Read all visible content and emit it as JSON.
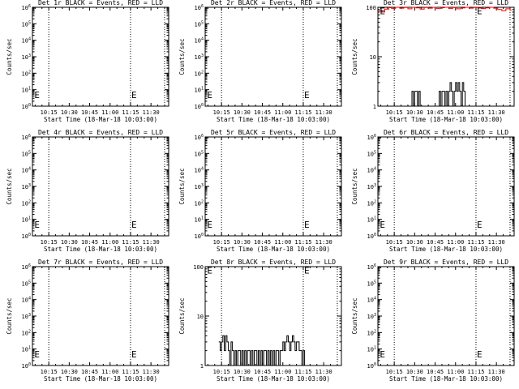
{
  "panel_colors": {
    "events": "#000000",
    "lld": "#ff0000"
  },
  "chart_data": [
    {
      "type": "line",
      "title": "Det 1r BLACK = Events, RED = LLD",
      "xlabel": "Start Time (18-Mar-18 10:03:00)",
      "ylabel": "Counts/sec",
      "x_tick_labels": [
        "10:15",
        "10:30",
        "10:45",
        "11:00",
        "11:15",
        "11:30"
      ],
      "x_ticks_min": [
        12,
        27,
        42,
        57,
        72,
        87
      ],
      "xlim": [
        0,
        100
      ],
      "yscale": "log",
      "ylim": [
        1,
        1000000
      ],
      "y_tick_labels": [
        "10^0",
        "10^1",
        "10^2",
        "10^3",
        "10^4",
        "10^5",
        "10^6"
      ],
      "y_tick_values": [
        1,
        10,
        100,
        1000,
        10000,
        100000,
        1000000
      ],
      "dotted_vlines_min": [
        12,
        72,
        97
      ],
      "markers": [
        {
          "label": "E",
          "x": 72,
          "y": 5
        },
        {
          "label": "E",
          "x": 0.8,
          "y": 5
        }
      ],
      "series": []
    },
    {
      "type": "line",
      "title": "Det 2r BLACK = Events, RED = LLD",
      "xlabel": "Start Time (18-Mar-18 10:03:00)",
      "ylabel": "Counts/sec",
      "x_tick_labels": [
        "10:15",
        "10:30",
        "10:45",
        "11:00",
        "11:15",
        "11:30"
      ],
      "x_ticks_min": [
        12,
        27,
        42,
        57,
        72,
        87
      ],
      "xlim": [
        0,
        100
      ],
      "yscale": "log",
      "ylim": [
        1,
        1000000
      ],
      "y_tick_labels": [
        "10^0",
        "10^1",
        "10^2",
        "10^3",
        "10^4",
        "10^5",
        "10^6"
      ],
      "y_tick_values": [
        1,
        10,
        100,
        1000,
        10000,
        100000,
        1000000
      ],
      "dotted_vlines_min": [
        12,
        72,
        97
      ],
      "markers": [
        {
          "label": "E",
          "x": 72,
          "y": 5
        },
        {
          "label": "E",
          "x": 0.8,
          "y": 5
        }
      ],
      "series": []
    },
    {
      "type": "line",
      "title": "Det 3r BLACK = Events, RED = LLD",
      "xlabel": "Start Time (18-Mar-18 10:03:00)",
      "ylabel": "Counts/sec",
      "x_tick_labels": [
        "10:15",
        "10:30",
        "10:45",
        "11:00",
        "11:15",
        "11:30"
      ],
      "x_ticks_min": [
        12,
        27,
        42,
        57,
        72,
        87
      ],
      "xlim": [
        0,
        100
      ],
      "yscale": "log",
      "ylim": [
        1,
        100
      ],
      "y_tick_labels": [
        "1",
        "10",
        "100"
      ],
      "y_tick_values": [
        1,
        10,
        100
      ],
      "dotted_vlines_min": [
        12,
        72,
        97
      ],
      "markers": [
        {
          "label": "E",
          "x": 72,
          "y": 85
        },
        {
          "label": "E",
          "x": 0.8,
          "y": 85
        }
      ],
      "series": [
        {
          "color": "lld",
          "x": [
            0,
            3,
            5,
            8,
            10,
            13,
            16,
            19,
            22,
            25,
            28,
            31,
            34,
            37,
            40,
            43,
            46,
            49,
            52,
            55,
            58,
            61,
            64,
            67,
            70,
            73,
            76,
            79,
            82,
            85,
            88,
            91,
            94,
            97
          ],
          "y": [
            85,
            80,
            92,
            98,
            95,
            100,
            96,
            99,
            93,
            100,
            97,
            92,
            99,
            96,
            100,
            94,
            98,
            100,
            95,
            99,
            93,
            97,
            100,
            96,
            99,
            100,
            94,
            97,
            100,
            96,
            90,
            85,
            93,
            88
          ]
        },
        {
          "color": "events",
          "x": [
            24,
            25,
            26,
            27,
            28,
            29,
            30,
            31,
            44,
            45,
            46,
            47,
            48,
            49,
            50,
            51,
            52,
            53,
            54,
            55,
            56,
            57,
            58,
            59,
            60,
            61,
            62,
            63,
            64,
            65
          ],
          "y": [
            1,
            2,
            1,
            2,
            2,
            1,
            2,
            1,
            1,
            2,
            1,
            2,
            2,
            1,
            2,
            1,
            2,
            3,
            2,
            1,
            2,
            3,
            2,
            3,
            2,
            1,
            3,
            2,
            1,
            1
          ]
        }
      ]
    },
    {
      "type": "line",
      "title": "Det 4r BLACK = Events, RED = LLD",
      "xlabel": "Start Time (18-Mar-18 10:03:00)",
      "ylabel": "Counts/sec",
      "x_tick_labels": [
        "10:15",
        "10:30",
        "10:45",
        "11:00",
        "11:15",
        "11:30"
      ],
      "x_ticks_min": [
        12,
        27,
        42,
        57,
        72,
        87
      ],
      "xlim": [
        0,
        100
      ],
      "yscale": "log",
      "ylim": [
        1,
        1000000
      ],
      "y_tick_labels": [
        "10^0",
        "10^1",
        "10^2",
        "10^3",
        "10^4",
        "10^5",
        "10^6"
      ],
      "y_tick_values": [
        1,
        10,
        100,
        1000,
        10000,
        100000,
        1000000
      ],
      "dotted_vlines_min": [
        12,
        72,
        97
      ],
      "markers": [
        {
          "label": "E",
          "x": 72,
          "y": 5
        },
        {
          "label": "E",
          "x": 0.8,
          "y": 5
        }
      ],
      "series": []
    },
    {
      "type": "line",
      "title": "Det 5r BLACK = Events, RED = LLD",
      "xlabel": "Start Time (18-Mar-18 10:03:00)",
      "ylabel": "Counts/sec",
      "x_tick_labels": [
        "10:15",
        "10:30",
        "10:45",
        "11:00",
        "11:15",
        "11:30"
      ],
      "x_ticks_min": [
        12,
        27,
        42,
        57,
        72,
        87
      ],
      "xlim": [
        0,
        100
      ],
      "yscale": "log",
      "ylim": [
        1,
        1000000
      ],
      "y_tick_labels": [
        "10^0",
        "10^1",
        "10^2",
        "10^3",
        "10^4",
        "10^5",
        "10^6"
      ],
      "y_tick_values": [
        1,
        10,
        100,
        1000,
        10000,
        100000,
        1000000
      ],
      "dotted_vlines_min": [
        12,
        72,
        97
      ],
      "markers": [
        {
          "label": "E",
          "x": 72,
          "y": 5
        },
        {
          "label": "E",
          "x": 0.8,
          "y": 5
        }
      ],
      "series": []
    },
    {
      "type": "line",
      "title": "Det 6r BLACK = Events, RED = LLD",
      "xlabel": "Start Time (18-Mar-18 10:03:00)",
      "ylabel": "Counts/sec",
      "x_tick_labels": [
        "10:15",
        "10:30",
        "10:45",
        "11:00",
        "11:15",
        "11:30"
      ],
      "x_ticks_min": [
        12,
        27,
        42,
        57,
        72,
        87
      ],
      "xlim": [
        0,
        100
      ],
      "yscale": "log",
      "ylim": [
        1,
        1000000
      ],
      "y_tick_labels": [
        "10^0",
        "10^1",
        "10^2",
        "10^3",
        "10^4",
        "10^5",
        "10^6"
      ],
      "y_tick_values": [
        1,
        10,
        100,
        1000,
        10000,
        100000,
        1000000
      ],
      "dotted_vlines_min": [
        12,
        72,
        97
      ],
      "markers": [
        {
          "label": "E",
          "x": 72,
          "y": 5
        },
        {
          "label": "E",
          "x": 0.8,
          "y": 5
        }
      ],
      "series": []
    },
    {
      "type": "line",
      "title": "Det 7r BLACK = Events, RED = LLD",
      "xlabel": "Start Time (18-Mar-18 10:03:00)",
      "ylabel": "Counts/sec",
      "x_tick_labels": [
        "10:15",
        "10:30",
        "10:45",
        "11:00",
        "11:15",
        "11:30"
      ],
      "x_ticks_min": [
        12,
        27,
        42,
        57,
        72,
        87
      ],
      "xlim": [
        0,
        100
      ],
      "yscale": "log",
      "ylim": [
        1,
        1000000
      ],
      "y_tick_labels": [
        "10^0",
        "10^1",
        "10^2",
        "10^3",
        "10^4",
        "10^5",
        "10^6"
      ],
      "y_tick_values": [
        1,
        10,
        100,
        1000,
        10000,
        100000,
        1000000
      ],
      "dotted_vlines_min": [
        12,
        72,
        97
      ],
      "markers": [
        {
          "label": "E",
          "x": 72,
          "y": 5
        },
        {
          "label": "E",
          "x": 0.8,
          "y": 5
        }
      ],
      "series": []
    },
    {
      "type": "line",
      "title": "Det 8r BLACK = Events, RED = LLD",
      "xlabel": "Start Time (18-Mar-18 10:03:00)",
      "ylabel": "Counts/sec",
      "x_tick_labels": [
        "10:15",
        "10:30",
        "10:45",
        "11:00",
        "11:15",
        "11:30"
      ],
      "x_ticks_min": [
        12,
        27,
        42,
        57,
        72,
        87
      ],
      "xlim": [
        0,
        100
      ],
      "yscale": "log",
      "ylim": [
        1,
        100
      ],
      "y_tick_labels": [
        "1",
        "10",
        "100"
      ],
      "y_tick_values": [
        1,
        10,
        100
      ],
      "dotted_vlines_min": [
        12,
        72,
        97
      ],
      "markers": [
        {
          "label": "E",
          "x": 72,
          "y": 85
        },
        {
          "label": "E",
          "x": 0.8,
          "y": 85
        }
      ],
      "series": [
        {
          "color": "events",
          "x": [
            10,
            11,
            12,
            13,
            14,
            15,
            16,
            17,
            18,
            19,
            20,
            21,
            22,
            23,
            24,
            25,
            26,
            27,
            28,
            29,
            30,
            31,
            32,
            33,
            34,
            35,
            36,
            37,
            38,
            39,
            40,
            41,
            42,
            43,
            44,
            45,
            46,
            47,
            48,
            49,
            50,
            51,
            52,
            53,
            54,
            55,
            56,
            57,
            58,
            59,
            60,
            61,
            62,
            63,
            64,
            65,
            66,
            67,
            68,
            69,
            70,
            71,
            72,
            73
          ],
          "y": [
            3,
            2,
            3,
            4,
            2,
            4,
            3,
            2,
            1,
            3,
            2,
            1,
            2,
            1,
            2,
            2,
            1,
            2,
            1,
            2,
            1,
            2,
            2,
            1,
            2,
            1,
            2,
            2,
            1,
            2,
            1,
            2,
            1,
            2,
            2,
            1,
            2,
            1,
            2,
            1,
            2,
            1,
            2,
            2,
            1,
            2,
            2,
            3,
            2,
            3,
            4,
            3,
            2,
            3,
            4,
            3,
            2,
            3,
            3,
            2,
            2,
            1,
            2,
            1
          ]
        }
      ]
    },
    {
      "type": "line",
      "title": "Det 9r BLACK = Events, RED = LLD",
      "xlabel": "Start Time (18-Mar-18 10:03:00)",
      "ylabel": "Counts/sec",
      "x_tick_labels": [
        "10:15",
        "10:30",
        "10:45",
        "11:00",
        "11:15",
        "11:30"
      ],
      "x_ticks_min": [
        12,
        27,
        42,
        57,
        72,
        87
      ],
      "xlim": [
        0,
        100
      ],
      "yscale": "log",
      "ylim": [
        1,
        1000000
      ],
      "y_tick_labels": [
        "10^0",
        "10^1",
        "10^2",
        "10^3",
        "10^4",
        "10^5",
        "10^6"
      ],
      "y_tick_values": [
        1,
        10,
        100,
        1000,
        10000,
        100000,
        1000000
      ],
      "dotted_vlines_min": [
        12,
        72,
        97
      ],
      "markers": [
        {
          "label": "E",
          "x": 72,
          "y": 5
        },
        {
          "label": "E",
          "x": 0.8,
          "y": 5
        }
      ],
      "series": []
    }
  ]
}
